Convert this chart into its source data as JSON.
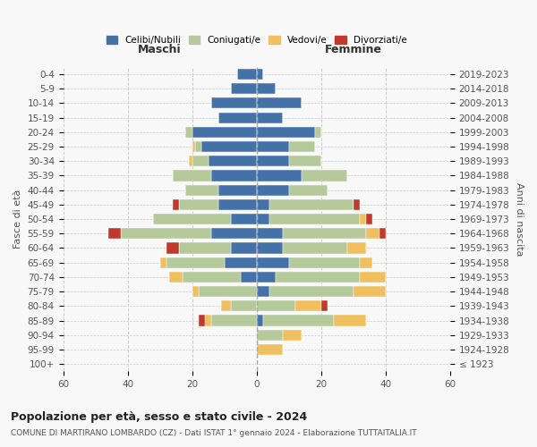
{
  "age_groups": [
    "100+",
    "95-99",
    "90-94",
    "85-89",
    "80-84",
    "75-79",
    "70-74",
    "65-69",
    "60-64",
    "55-59",
    "50-54",
    "45-49",
    "40-44",
    "35-39",
    "30-34",
    "25-29",
    "20-24",
    "15-19",
    "10-14",
    "5-9",
    "0-4"
  ],
  "birth_years": [
    "≤ 1923",
    "1924-1928",
    "1929-1933",
    "1934-1938",
    "1939-1943",
    "1944-1948",
    "1949-1953",
    "1954-1958",
    "1959-1963",
    "1964-1968",
    "1969-1973",
    "1974-1978",
    "1979-1983",
    "1984-1988",
    "1989-1993",
    "1994-1998",
    "1999-2003",
    "2004-2008",
    "2009-2013",
    "2014-2018",
    "2019-2023"
  ],
  "colors": {
    "celibe": "#4472a8",
    "coniugato": "#b5c99a",
    "vedovo": "#f0c060",
    "divorziato": "#c0392b"
  },
  "maschi": {
    "celibe": [
      0,
      0,
      0,
      0,
      0,
      0,
      5,
      10,
      8,
      14,
      8,
      12,
      12,
      14,
      15,
      17,
      20,
      12,
      14,
      8,
      6
    ],
    "coniugato": [
      0,
      0,
      0,
      14,
      8,
      18,
      18,
      18,
      16,
      28,
      24,
      12,
      10,
      12,
      5,
      2,
      2,
      0,
      0,
      0,
      0
    ],
    "vedovo": [
      0,
      0,
      0,
      2,
      3,
      2,
      4,
      2,
      0,
      0,
      0,
      0,
      0,
      0,
      1,
      1,
      0,
      0,
      0,
      0,
      0
    ],
    "divorziato": [
      0,
      0,
      0,
      2,
      0,
      0,
      0,
      0,
      4,
      4,
      0,
      2,
      0,
      0,
      0,
      0,
      0,
      0,
      0,
      0,
      0
    ]
  },
  "femmine": {
    "celibe": [
      0,
      0,
      0,
      2,
      0,
      4,
      6,
      10,
      8,
      8,
      4,
      4,
      10,
      14,
      10,
      10,
      18,
      8,
      14,
      6,
      2
    ],
    "coniugato": [
      0,
      0,
      8,
      22,
      12,
      26,
      26,
      22,
      20,
      26,
      28,
      26,
      12,
      14,
      10,
      8,
      2,
      0,
      0,
      0,
      0
    ],
    "vedovo": [
      0,
      8,
      6,
      10,
      8,
      10,
      8,
      4,
      6,
      4,
      2,
      0,
      0,
      0,
      0,
      0,
      0,
      0,
      0,
      0,
      0
    ],
    "divorziato": [
      0,
      0,
      0,
      0,
      2,
      0,
      0,
      0,
      0,
      2,
      2,
      2,
      0,
      0,
      0,
      0,
      0,
      0,
      0,
      0,
      0
    ]
  },
  "title": "Popolazione per età, sesso e stato civile - 2024",
  "subtitle": "COMUNE DI MARTIRANO LOMBARDO (CZ) - Dati ISTAT 1° gennaio 2024 - Elaborazione TUTTAITALIA.IT",
  "xlabel_left": "Maschi",
  "xlabel_right": "Femmine",
  "ylabel_left": "Fasce di età",
  "ylabel_right": "Anni di nascita",
  "xlim": 60,
  "bg_color": "#f8f8f8",
  "grid_color": "#cccccc"
}
